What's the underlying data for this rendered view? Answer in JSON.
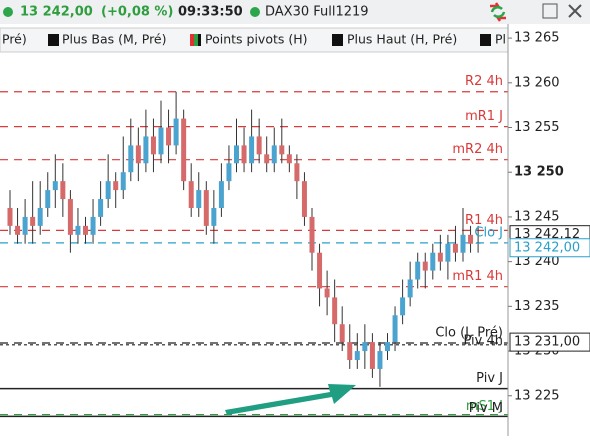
{
  "header": {
    "price": "13 242,00",
    "change": "(+0,08 %)",
    "time": "09:33:50",
    "instrument": "DAX30 Full1219"
  },
  "tabs": [
    "Pré)",
    "Plus Bas (M, Pré)",
    "Points pivots (H)",
    "Plus Haut (H, Pré)",
    "Pl"
  ],
  "chart_data": {
    "type": "candlestick",
    "up_color": "#4ba3cf",
    "down_color": "#d66a6a",
    "ylim": [
      13220.5,
      13266.8
    ],
    "yticks": [
      {
        "value": 13225,
        "label": "13 225"
      },
      {
        "value": 13230,
        "label": "13 230"
      },
      {
        "value": 13235,
        "label": "13 235"
      },
      {
        "value": 13240,
        "label": "13 240"
      },
      {
        "value": 13245,
        "label": "13 245"
      },
      {
        "value": 13250,
        "label": "13 250"
      },
      {
        "value": 13255,
        "label": "13 255"
      },
      {
        "value": 13260,
        "label": "13 260"
      },
      {
        "value": 13265,
        "label": "13 265"
      }
    ],
    "open": [
      13246,
      13244,
      13243,
      13245,
      13244,
      13246,
      13248,
      13249,
      13247,
      13243,
      13244,
      13243,
      13245,
      13247,
      13249,
      13248,
      13250,
      13253,
      13251,
      13254,
      13252,
      13255,
      13253,
      13256,
      13249,
      13246,
      13248,
      13244,
      13246,
      13249,
      13251,
      13253,
      13251,
      13254,
      13252,
      13251,
      13253,
      13252,
      13251,
      13249,
      13245,
      13241,
      13237,
      13236,
      13233,
      13231,
      13229,
      13230,
      13231,
      13228,
      13230,
      13231,
      13234,
      13236,
      13238,
      13240,
      13239,
      13241,
      13240,
      13242,
      13241,
      13243,
      13242
    ],
    "high": [
      13248,
      13246,
      13247,
      13249,
      13249,
      13250,
      13252,
      13251,
      13248,
      13246,
      13245,
      13247,
      13249,
      13252,
      13250,
      13254,
      13256,
      13255,
      13257,
      13256,
      13258,
      13257,
      13259,
      13257,
      13251,
      13250,
      13249,
      13248,
      13251,
      13253,
      13256,
      13255,
      13257,
      13256,
      13254,
      13255,
      13256,
      13253,
      13252,
      13250,
      13246,
      13242,
      13239,
      13238,
      13235,
      13233,
      13232,
      13233,
      13232,
      13231,
      13232,
      13235,
      13238,
      13240,
      13241,
      13241,
      13242,
      13243,
      13243,
      13244,
      13246,
      13244,
      13244
    ],
    "low": [
      13243,
      13242,
      13242,
      13242,
      13243,
      13245,
      13246,
      13245,
      13241,
      13242,
      13242,
      13242,
      13244,
      13246,
      13246,
      13247,
      13249,
      13249,
      13250,
      13250,
      13251,
      13251,
      13252,
      13248,
      13245,
      13245,
      13243,
      13242,
      13245,
      13248,
      13250,
      13250,
      13250,
      13251,
      13250,
      13250,
      13251,
      13250,
      13247,
      13244,
      13239,
      13235,
      13234,
      13231,
      13230,
      13228,
      13228,
      13228,
      13227,
      13226,
      13229,
      13230,
      13233,
      13235,
      13237,
      13237,
      13238,
      13239,
      13238,
      13240,
      13240,
      13241,
      13241
    ],
    "close": [
      13244,
      13243,
      13245,
      13244,
      13246,
      13248,
      13249,
      13247,
      13243,
      13244,
      13243,
      13245,
      13247,
      13249,
      13248,
      13250,
      13253,
      13251,
      13254,
      13252,
      13255,
      13253,
      13256,
      13249,
      13246,
      13248,
      13244,
      13246,
      13249,
      13251,
      13253,
      13251,
      13254,
      13252,
      13251,
      13253,
      13252,
      13251,
      13249,
      13245,
      13241,
      13237,
      13236,
      13233,
      13231,
      13229,
      13230,
      13231,
      13228,
      13230,
      13231,
      13234,
      13236,
      13238,
      13240,
      13239,
      13241,
      13240,
      13242,
      13241,
      13243,
      13242,
      13242.1
    ],
    "levels": [
      {
        "label": "R2 4h",
        "value": 13259.0,
        "color": "#d93a3a",
        "style": "dashed"
      },
      {
        "label": "mR1 J",
        "value": 13255.1,
        "color": "#d93a3a",
        "style": "dashed"
      },
      {
        "label": "mR2 4h",
        "value": 13251.4,
        "color": "#d93a3a",
        "style": "dashed"
      },
      {
        "label": "R1 4h",
        "value": 13243.5,
        "color": "#d93a3a",
        "style": "dashed"
      },
      {
        "label": "Clo J",
        "value": 13242.1,
        "color": "#2a9fc9",
        "style": "dashed"
      },
      {
        "label": "mR1 4h",
        "value": 13237.2,
        "color": "#d93a3a",
        "style": "dashed"
      },
      {
        "label": "Clo (J, Pré)",
        "value": 13230.9,
        "color": "#222222",
        "style": "dashed"
      },
      {
        "label": "Piv 4h",
        "value": 13230.7,
        "color": "#222222",
        "style": "dotted"
      },
      {
        "label": "Piv J",
        "value": 13225.8,
        "color": "#222222",
        "style": "solid"
      },
      {
        "label": "mS1 J",
        "value": 13222.9,
        "color": "#2e9e3e",
        "style": "dashed"
      },
      {
        "label": "Piv M",
        "value": 13222.7,
        "color": "#222222",
        "style": "solid"
      }
    ],
    "price_markers": [
      {
        "value": 13242.12,
        "label": "13 242,12",
        "color": "#222222"
      },
      {
        "value": 13242.0,
        "label": "13 242,00",
        "color": "#2a9fc9"
      },
      {
        "value": 13231.0,
        "label": "13 231,00",
        "color": "#222222"
      }
    ]
  }
}
